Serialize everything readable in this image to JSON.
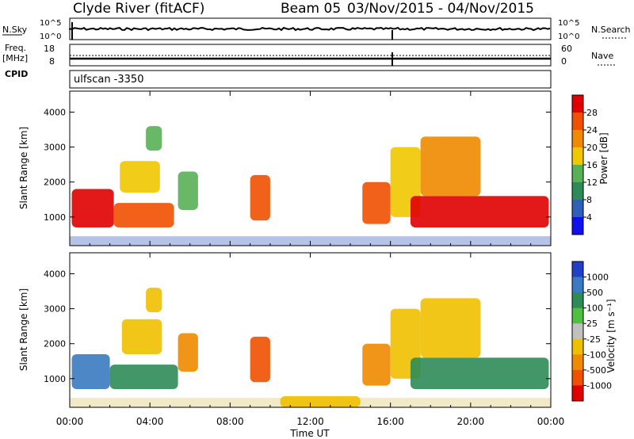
{
  "header": {
    "station": "Clyde River (fitACF)",
    "beam": "Beam 05",
    "date_range": "03/Nov/2015 - 04/Nov/2015"
  },
  "status_panel": {
    "left_top_label": "N.Sky",
    "left_bottom_label": "Freq.",
    "left_bottom_unit": "[MHz]",
    "cpid_label": "CPID",
    "cpid_value": "ulfscan -3350",
    "nsky_ticks": [
      "10^5",
      "10^0"
    ],
    "freq_ticks": [
      "18",
      "8"
    ],
    "right_top_label": "N.Search",
    "right_bottom_label": "Nave",
    "nsearch_ticks": [
      "10^5",
      "10^0"
    ],
    "nave_ticks": [
      "60",
      "0"
    ]
  },
  "chart_data": [
    {
      "type": "heatmap",
      "panel": "power",
      "ylabel": "Slant Range [km]",
      "y_ticks": [
        1000,
        2000,
        3000,
        4000
      ],
      "ylim": [
        180,
        4600
      ],
      "colorbar": {
        "label": "Power [dB]",
        "ticks": [
          4,
          8,
          12,
          16,
          20,
          24,
          28
        ],
        "colors": [
          "#1010ee",
          "#2f5fb8",
          "#2e8b57",
          "#58b058",
          "#f0c800",
          "#f08a00",
          "#f05000",
          "#e00000"
        ]
      },
      "echo_regions": [
        {
          "t_start": 0.1,
          "t_end": 2.2,
          "r_min": 700,
          "r_max": 1800,
          "level": 28
        },
        {
          "t_start": 2.2,
          "t_end": 5.2,
          "r_min": 700,
          "r_max": 1400,
          "level": 24
        },
        {
          "t_start": 2.5,
          "t_end": 4.5,
          "r_min": 1700,
          "r_max": 2600,
          "level": 16
        },
        {
          "t_start": 3.8,
          "t_end": 4.6,
          "r_min": 2900,
          "r_max": 3600,
          "level": 12
        },
        {
          "t_start": 5.4,
          "t_end": 6.4,
          "r_min": 1200,
          "r_max": 2300,
          "level": 12
        },
        {
          "t_start": 9.0,
          "t_end": 10.0,
          "r_min": 900,
          "r_max": 2200,
          "level": 24
        },
        {
          "t_start": 14.6,
          "t_end": 16.0,
          "r_min": 800,
          "r_max": 2000,
          "level": 24
        },
        {
          "t_start": 16.0,
          "t_end": 17.5,
          "r_min": 1000,
          "r_max": 3000,
          "level": 16
        },
        {
          "t_start": 17.0,
          "t_end": 23.9,
          "r_min": 700,
          "r_max": 1600,
          "level": 28
        },
        {
          "t_start": 17.5,
          "t_end": 20.5,
          "r_min": 1600,
          "r_max": 3300,
          "level": 20
        }
      ]
    },
    {
      "type": "heatmap",
      "panel": "velocity",
      "xlabel": "Time UT",
      "ylabel": "Slant Range [km]",
      "x_ticks": [
        "00:00",
        "04:00",
        "08:00",
        "12:00",
        "16:00",
        "20:00",
        "00:00"
      ],
      "xlim_hours": [
        0,
        24
      ],
      "y_ticks": [
        1000,
        2000,
        3000,
        4000
      ],
      "ylim": [
        180,
        4600
      ],
      "colorbar": {
        "label": "Velocity [m s⁻¹]",
        "ticks": [
          1000,
          500,
          100,
          25,
          -25,
          -100,
          -500,
          -1000
        ],
        "colors": [
          "#2040c8",
          "#3a7ac0",
          "#2e8b57",
          "#50c040",
          "#c0c0c0",
          "#f0c000",
          "#f08a00",
          "#f05000",
          "#e00000"
        ]
      },
      "echo_regions": [
        {
          "t_start": 0.1,
          "t_end": 2.0,
          "r_min": 700,
          "r_max": 1700,
          "level": 500
        },
        {
          "t_start": 2.0,
          "t_end": 5.4,
          "r_min": 700,
          "r_max": 1400,
          "level": 100
        },
        {
          "t_start": 2.6,
          "t_end": 4.6,
          "r_min": 1700,
          "r_max": 2700,
          "level": -100
        },
        {
          "t_start": 3.8,
          "t_end": 4.6,
          "r_min": 2900,
          "r_max": 3600,
          "level": -100
        },
        {
          "t_start": 5.4,
          "t_end": 6.4,
          "r_min": 1200,
          "r_max": 2300,
          "level": -500
        },
        {
          "t_start": 9.0,
          "t_end": 10.0,
          "r_min": 900,
          "r_max": 2200,
          "level": -1000
        },
        {
          "t_start": 14.6,
          "t_end": 16.0,
          "r_min": 800,
          "r_max": 2000,
          "level": -500
        },
        {
          "t_start": 16.0,
          "t_end": 17.5,
          "r_min": 1000,
          "r_max": 3000,
          "level": -100
        },
        {
          "t_start": 17.0,
          "t_end": 23.9,
          "r_min": 700,
          "r_max": 1600,
          "level": 100
        },
        {
          "t_start": 17.5,
          "t_end": 20.5,
          "r_min": 1600,
          "r_max": 3300,
          "level": -100
        },
        {
          "t_start": 10.5,
          "t_end": 14.5,
          "r_min": 180,
          "r_max": 500,
          "level": -100
        }
      ]
    }
  ]
}
